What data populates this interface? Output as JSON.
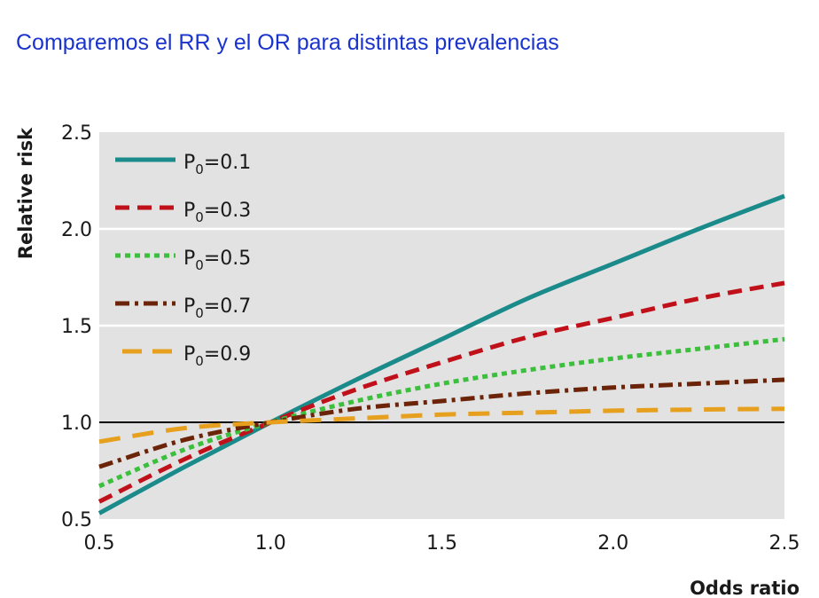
{
  "slide": {
    "title": "Comparemos el RR y el OR para distintas prevalencias"
  },
  "chart_data": {
    "type": "line",
    "xlabel": "Odds ratio",
    "ylabel": "Relative risk",
    "xlim": [
      0.5,
      2.5
    ],
    "ylim": [
      0.5,
      2.5
    ],
    "x_ticks": [
      "0.5",
      "1.0",
      "1.5",
      "2.0",
      "2.5"
    ],
    "y_ticks": [
      "0.5",
      "1.0",
      "1.5",
      "2.0",
      "2.5"
    ],
    "reference_line": 1.0,
    "grid": true,
    "legend_position": "top-left",
    "x": [
      0.5,
      0.75,
      1.0,
      1.25,
      1.5,
      1.75,
      2.0,
      2.25,
      2.5
    ],
    "series": [
      {
        "name": "P0=0.1",
        "label_main": "P",
        "label_sub": "0",
        "label_rest": "=0.1",
        "color": "#1a8a8a",
        "dash": "solid",
        "values": [
          0.53,
          0.77,
          1.0,
          1.22,
          1.43,
          1.64,
          1.82,
          2.0,
          2.17
        ]
      },
      {
        "name": "P0=0.3",
        "label_main": "P",
        "label_sub": "0",
        "label_rest": "=0.3",
        "color": "#c0111b",
        "dash": "dashed",
        "values": [
          0.59,
          0.81,
          1.0,
          1.17,
          1.31,
          1.44,
          1.54,
          1.64,
          1.72
        ]
      },
      {
        "name": "P0=0.5",
        "label_main": "P",
        "label_sub": "0",
        "label_rest": "=0.5",
        "color": "#3cbf3c",
        "dash": "dotted",
        "values": [
          0.67,
          0.86,
          1.0,
          1.11,
          1.2,
          1.27,
          1.33,
          1.38,
          1.43
        ]
      },
      {
        "name": "P0=0.7",
        "label_main": "P",
        "label_sub": "0",
        "label_rest": "=0.7",
        "color": "#6b2408",
        "dash": "dashdot",
        "values": [
          0.77,
          0.91,
          1.0,
          1.07,
          1.11,
          1.15,
          1.18,
          1.2,
          1.22
        ]
      },
      {
        "name": "P0=0.9",
        "label_main": "P",
        "label_sub": "0",
        "label_rest": "=0.9",
        "color": "#e6a01e",
        "dash": "longdash",
        "values": [
          0.9,
          0.97,
          1.0,
          1.02,
          1.04,
          1.05,
          1.06,
          1.066,
          1.07
        ]
      }
    ]
  }
}
